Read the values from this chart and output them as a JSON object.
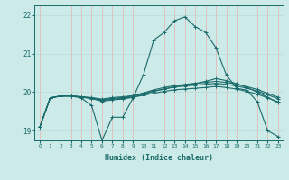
{
  "title": "",
  "xlabel": "Humidex (Indice chaleur)",
  "bg_color": "#cceae7",
  "line_color": "#1a6b6b",
  "grid_v_color": "#e8b0b0",
  "grid_h_color": "#b8dbd8",
  "xlim": [
    -0.5,
    23.5
  ],
  "ylim": [
    18.75,
    22.25
  ],
  "yticks": [
    19,
    20,
    21,
    22
  ],
  "xticks": [
    0,
    1,
    2,
    3,
    4,
    5,
    6,
    7,
    8,
    9,
    10,
    11,
    12,
    13,
    14,
    15,
    16,
    17,
    18,
    19,
    20,
    21,
    22,
    23
  ],
  "lines": [
    {
      "x": [
        0,
        1,
        2,
        3,
        4,
        5,
        6,
        7,
        8,
        9,
        10,
        11,
        12,
        13,
        14,
        15,
        16,
        17,
        18,
        19,
        20,
        21,
        22,
        23
      ],
      "y": [
        19.1,
        19.85,
        19.9,
        19.9,
        19.85,
        19.65,
        18.75,
        19.35,
        19.35,
        19.85,
        20.45,
        21.35,
        21.55,
        21.85,
        21.95,
        21.7,
        21.55,
        21.15,
        20.45,
        20.1,
        20.05,
        19.75,
        19.0,
        18.85
      ]
    },
    {
      "x": [
        0,
        1,
        2,
        3,
        4,
        5,
        6,
        7,
        8,
        9,
        10,
        11,
        12,
        13,
        14,
        15,
        16,
        17,
        18,
        19,
        20,
        21,
        22,
        23
      ],
      "y": [
        19.1,
        19.85,
        19.9,
        19.9,
        19.87,
        19.83,
        19.78,
        19.82,
        19.84,
        19.87,
        19.92,
        19.97,
        20.02,
        20.06,
        20.08,
        20.1,
        20.12,
        20.15,
        20.12,
        20.08,
        20.02,
        19.95,
        19.85,
        19.75
      ]
    },
    {
      "x": [
        0,
        1,
        2,
        3,
        4,
        5,
        6,
        7,
        8,
        9,
        10,
        11,
        12,
        13,
        14,
        15,
        16,
        17,
        18,
        19,
        20,
        21,
        22,
        23
      ],
      "y": [
        19.1,
        19.85,
        19.9,
        19.9,
        19.88,
        19.85,
        19.8,
        19.84,
        19.86,
        19.9,
        19.96,
        20.03,
        20.08,
        20.13,
        20.16,
        20.18,
        20.2,
        20.23,
        20.2,
        20.16,
        20.1,
        20.03,
        19.93,
        19.83
      ]
    },
    {
      "x": [
        0,
        1,
        2,
        3,
        4,
        5,
        6,
        7,
        8,
        9,
        10,
        11,
        12,
        13,
        14,
        15,
        16,
        17,
        18,
        19,
        20,
        21,
        22,
        23
      ],
      "y": [
        19.1,
        19.85,
        19.9,
        19.9,
        19.88,
        19.86,
        19.82,
        19.86,
        19.88,
        19.91,
        19.98,
        20.06,
        20.12,
        20.17,
        20.2,
        20.23,
        20.25,
        20.28,
        20.25,
        20.21,
        20.14,
        20.07,
        19.97,
        19.87
      ]
    },
    {
      "x": [
        0,
        1,
        2,
        3,
        4,
        5,
        6,
        7,
        8,
        9,
        10,
        11,
        12,
        13,
        14,
        15,
        16,
        17,
        18,
        19,
        20,
        21,
        22,
        23
      ],
      "y": [
        19.1,
        19.85,
        19.9,
        19.9,
        19.88,
        19.84,
        19.76,
        19.8,
        19.82,
        19.87,
        19.94,
        20.02,
        20.08,
        20.14,
        20.18,
        20.22,
        20.28,
        20.35,
        20.3,
        20.22,
        20.12,
        20.0,
        19.87,
        19.72
      ]
    }
  ]
}
